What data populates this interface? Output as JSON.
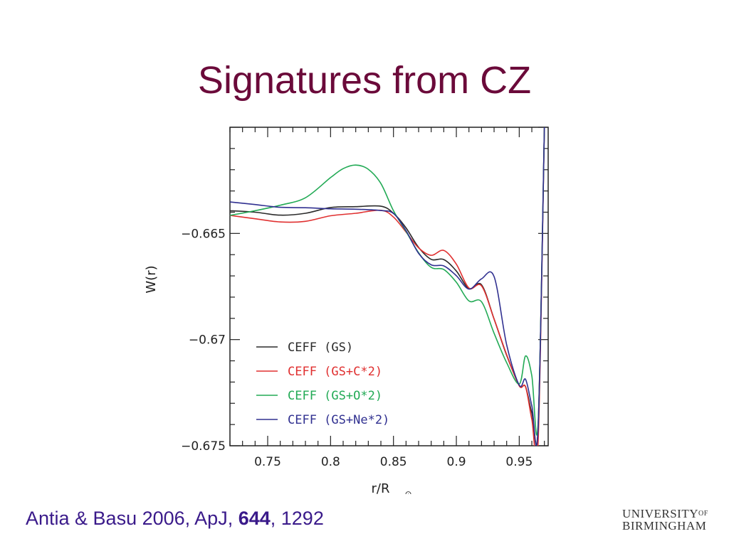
{
  "slide": {
    "title": "Signatures from CZ",
    "citation": {
      "authors": "Antia & Basu 2006, ApJ, ",
      "volume": "644",
      "pages": ", 1292"
    },
    "logo": {
      "line1": "UNIVERSITY",
      "of": "OF",
      "line2": "BIRMINGHAM"
    }
  },
  "chart_data": {
    "type": "line",
    "title": "",
    "xlabel": "r/R",
    "xlabel_subscript": "⊙",
    "ylabel": "W(r)",
    "xlim": [
      0.72,
      0.973
    ],
    "ylim": [
      -0.675,
      -0.66
    ],
    "xticks": [
      0.75,
      0.8,
      0.85,
      0.9,
      0.95
    ],
    "xtick_labels": [
      "0.75",
      "0.8",
      "0.85",
      "0.9",
      "0.95"
    ],
    "yticks": [
      -0.665,
      -0.67,
      -0.675
    ],
    "ytick_labels": [
      "−0.665",
      "−0.67",
      "−0.675"
    ],
    "grid": false,
    "legend_position": "lower-left",
    "series": [
      {
        "name": "CEFF (GS)",
        "color": "#2b2b2b",
        "x": [
          0.72,
          0.74,
          0.76,
          0.78,
          0.8,
          0.82,
          0.84,
          0.85,
          0.86,
          0.87,
          0.88,
          0.89,
          0.9,
          0.91,
          0.92,
          0.93,
          0.94,
          0.95,
          0.955,
          0.96,
          0.965,
          0.97
        ],
        "y": [
          -0.66393,
          -0.664,
          -0.66414,
          -0.66405,
          -0.66378,
          -0.66374,
          -0.66372,
          -0.66405,
          -0.66474,
          -0.66566,
          -0.66622,
          -0.66623,
          -0.66677,
          -0.6676,
          -0.66742,
          -0.66903,
          -0.67074,
          -0.67215,
          -0.67222,
          -0.67344,
          -0.67407,
          -0.66
        ]
      },
      {
        "name": "CEFF (GS+C*2)",
        "color": "#e03030",
        "x": [
          0.72,
          0.74,
          0.76,
          0.78,
          0.8,
          0.82,
          0.84,
          0.85,
          0.86,
          0.87,
          0.88,
          0.89,
          0.9,
          0.91,
          0.92,
          0.93,
          0.94,
          0.95,
          0.955,
          0.96,
          0.965,
          0.97
        ],
        "y": [
          -0.66415,
          -0.66431,
          -0.66446,
          -0.66443,
          -0.66417,
          -0.66405,
          -0.66391,
          -0.66423,
          -0.66494,
          -0.66568,
          -0.66603,
          -0.6658,
          -0.66645,
          -0.66757,
          -0.66747,
          -0.66903,
          -0.67071,
          -0.67218,
          -0.67222,
          -0.67375,
          -0.67481,
          -0.66
        ]
      },
      {
        "name": "CEFF (GS+O*2)",
        "color": "#22aa55",
        "x": [
          0.72,
          0.74,
          0.76,
          0.78,
          0.8,
          0.81,
          0.82,
          0.83,
          0.84,
          0.85,
          0.86,
          0.87,
          0.88,
          0.89,
          0.9,
          0.91,
          0.92,
          0.93,
          0.94,
          0.95,
          0.955,
          0.96,
          0.965,
          0.97
        ],
        "y": [
          -0.66415,
          -0.66393,
          -0.66367,
          -0.66332,
          -0.66237,
          -0.66195,
          -0.66178,
          -0.66198,
          -0.66265,
          -0.66393,
          -0.66491,
          -0.66591,
          -0.6666,
          -0.6667,
          -0.6673,
          -0.66818,
          -0.66822,
          -0.6697,
          -0.67109,
          -0.67209,
          -0.67077,
          -0.6717,
          -0.67393,
          -0.66
        ]
      },
      {
        "name": "CEFF (GS+Ne*2)",
        "color": "#303090",
        "x": [
          0.72,
          0.74,
          0.76,
          0.78,
          0.8,
          0.82,
          0.84,
          0.85,
          0.86,
          0.87,
          0.88,
          0.89,
          0.9,
          0.91,
          0.92,
          0.93,
          0.94,
          0.95,
          0.955,
          0.96,
          0.965,
          0.97
        ],
        "y": [
          -0.66352,
          -0.66364,
          -0.66377,
          -0.66379,
          -0.66384,
          -0.66386,
          -0.66392,
          -0.66406,
          -0.66487,
          -0.66594,
          -0.66648,
          -0.66653,
          -0.66699,
          -0.66762,
          -0.66714,
          -0.66703,
          -0.67025,
          -0.67215,
          -0.67187,
          -0.67311,
          -0.67417,
          -0.66
        ]
      }
    ]
  }
}
